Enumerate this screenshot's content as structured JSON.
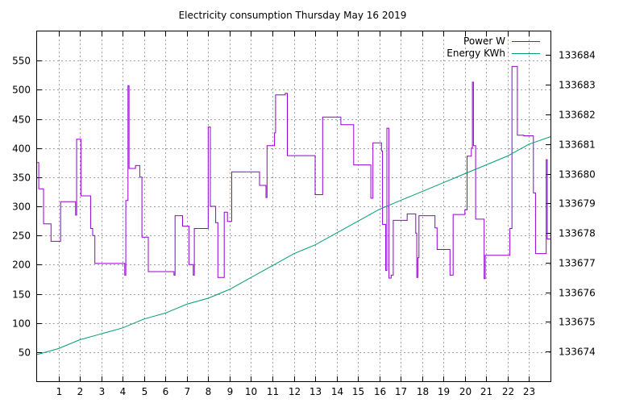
{
  "chart_data": {
    "type": "line",
    "title": "Electricity consumption Thursday May 16 2019",
    "xlim": [
      0,
      24
    ],
    "x_ticks": [
      1,
      2,
      3,
      4,
      5,
      6,
      7,
      8,
      9,
      10,
      11,
      12,
      13,
      14,
      15,
      16,
      17,
      18,
      19,
      20,
      21,
      22,
      23
    ],
    "ylim": [
      0,
      600
    ],
    "y_ticks": [
      50,
      100,
      150,
      200,
      250,
      300,
      350,
      400,
      450,
      500,
      550
    ],
    "y2lim": [
      133673.0,
      133684.8
    ],
    "y2_ticks": [
      133674,
      133675,
      133676,
      133677,
      133678,
      133679,
      133680,
      133681,
      133682,
      133683,
      133684
    ],
    "grid": true,
    "legend_position": "top-right",
    "series": [
      {
        "name": "Power W",
        "color": "#9400d3",
        "axis": "left",
        "step": true,
        "points": [
          [
            0.0,
            375
          ],
          [
            0.08,
            330
          ],
          [
            0.3,
            270
          ],
          [
            0.65,
            240
          ],
          [
            1.1,
            308
          ],
          [
            1.8,
            285
          ],
          [
            1.85,
            415
          ],
          [
            2.05,
            318
          ],
          [
            2.5,
            262
          ],
          [
            2.6,
            250
          ],
          [
            2.7,
            202
          ],
          [
            4.1,
            182
          ],
          [
            4.15,
            310
          ],
          [
            4.25,
            507
          ],
          [
            4.3,
            365
          ],
          [
            4.6,
            370
          ],
          [
            4.8,
            350
          ],
          [
            4.9,
            247
          ],
          [
            5.2,
            188
          ],
          [
            6.4,
            182
          ],
          [
            6.45,
            284
          ],
          [
            6.8,
            266
          ],
          [
            7.1,
            200
          ],
          [
            7.3,
            182
          ],
          [
            7.35,
            262
          ],
          [
            8.0,
            436
          ],
          [
            8.1,
            300
          ],
          [
            8.35,
            272
          ],
          [
            8.45,
            178
          ],
          [
            8.75,
            290
          ],
          [
            8.9,
            274
          ],
          [
            9.1,
            359
          ],
          [
            10.4,
            336
          ],
          [
            10.7,
            315
          ],
          [
            10.75,
            404
          ],
          [
            11.1,
            426
          ],
          [
            11.15,
            491
          ],
          [
            11.6,
            494
          ],
          [
            11.7,
            387
          ],
          [
            13.0,
            320
          ],
          [
            13.35,
            453
          ],
          [
            14.2,
            440
          ],
          [
            14.8,
            371
          ],
          [
            15.6,
            314
          ],
          [
            15.7,
            409
          ],
          [
            16.1,
            395
          ],
          [
            16.15,
            269
          ],
          [
            16.3,
            190
          ],
          [
            16.35,
            434
          ],
          [
            16.45,
            177
          ],
          [
            16.55,
            182
          ],
          [
            16.65,
            276
          ],
          [
            17.3,
            287
          ],
          [
            17.7,
            254
          ],
          [
            17.75,
            178
          ],
          [
            17.8,
            212
          ],
          [
            17.85,
            284
          ],
          [
            18.6,
            263
          ],
          [
            18.7,
            226
          ],
          [
            19.3,
            182
          ],
          [
            19.45,
            286
          ],
          [
            20.0,
            294
          ],
          [
            20.1,
            386
          ],
          [
            20.3,
            400
          ],
          [
            20.35,
            513
          ],
          [
            20.4,
            404
          ],
          [
            20.5,
            278
          ],
          [
            20.9,
            176
          ],
          [
            20.95,
            216
          ],
          [
            22.1,
            262
          ],
          [
            22.2,
            540
          ],
          [
            22.45,
            422
          ],
          [
            22.75,
            421
          ],
          [
            23.2,
            323
          ],
          [
            23.3,
            219
          ],
          [
            23.8,
            380
          ],
          [
            23.85,
            244
          ],
          [
            24.0,
            244
          ]
        ]
      },
      {
        "name": "Energy KWh",
        "color": "#009e73",
        "axis": "right",
        "step": false,
        "points": [
          [
            0.0,
            133673.9
          ],
          [
            1.0,
            133674.1
          ],
          [
            2.0,
            133674.4
          ],
          [
            3.0,
            133674.6
          ],
          [
            4.0,
            133674.8
          ],
          [
            5.0,
            133675.1
          ],
          [
            6.0,
            133675.3
          ],
          [
            7.0,
            133675.6
          ],
          [
            8.0,
            133675.8
          ],
          [
            9.0,
            133676.1
          ],
          [
            10.0,
            133676.5
          ],
          [
            11.0,
            133676.9
          ],
          [
            12.0,
            133677.3
          ],
          [
            13.0,
            133677.6
          ],
          [
            14.0,
            133678.0
          ],
          [
            15.0,
            133678.4
          ],
          [
            16.0,
            133678.8
          ],
          [
            17.0,
            133679.1
          ],
          [
            18.0,
            133679.4
          ],
          [
            19.0,
            133679.7
          ],
          [
            20.0,
            133680.0
          ],
          [
            21.0,
            133680.3
          ],
          [
            22.0,
            133680.6
          ],
          [
            23.0,
            133681.0
          ],
          [
            24.0,
            133681.25
          ]
        ]
      }
    ]
  }
}
